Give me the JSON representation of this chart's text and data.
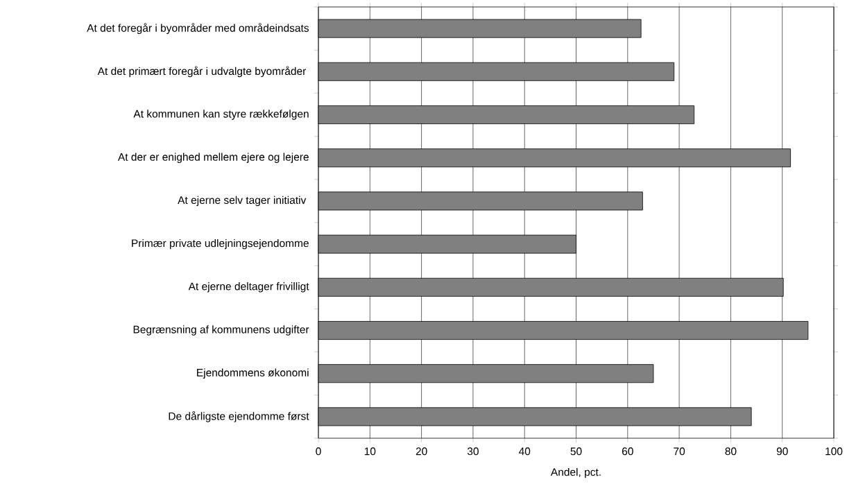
{
  "chart_data": {
    "type": "bar",
    "orientation": "horizontal",
    "xlabel": "Andel, pct.",
    "categories": [
      "At det foregår i byområder med områdeindsats",
      "At det primært foregår i udvalgte byområder ",
      "At kommunen kan styre rækkefølgen",
      "At der er enighed mellem ejere og lejere",
      "At ejerne selv tager initiativ ",
      "Primær private udlejningsejendomme",
      "At ejerne deltager frivilligt",
      "Begrænsning af kommunens udgifter",
      "Ejendommens økonomi",
      "De dårligste ejendomme først"
    ],
    "values": [
      62.6,
      69.0,
      72.9,
      91.6,
      62.9,
      50.0,
      90.2,
      95.0,
      65.0,
      84.0
    ],
    "color": "#808080",
    "xlim": [
      0,
      100
    ],
    "xticks": [
      0,
      10,
      20,
      30,
      40,
      50,
      60,
      70,
      80,
      90,
      100
    ],
    "grid": "x"
  }
}
